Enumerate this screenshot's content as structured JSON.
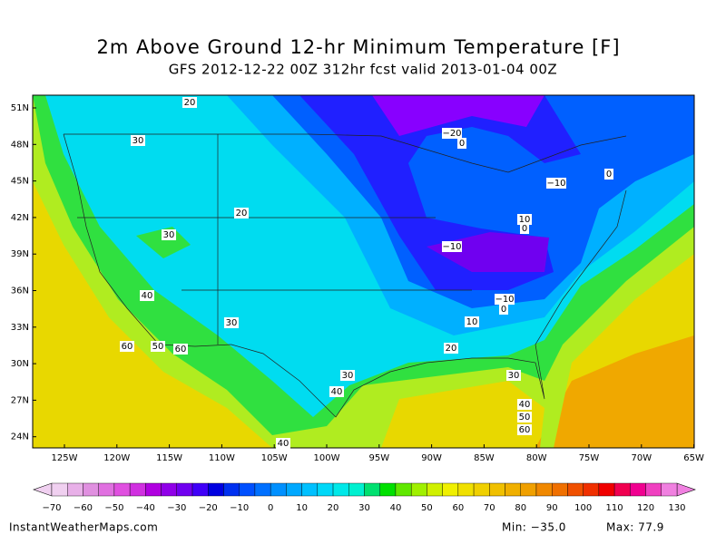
{
  "header": {
    "title": "2m Above Ground 12-hr Minimum Temperature [F]",
    "subtitle": "GFS 2012-12-22 00Z 312hr fcst valid 2013-01-04 00Z"
  },
  "map": {
    "lat_labels": [
      "51N",
      "48N",
      "45N",
      "42N",
      "39N",
      "36N",
      "33N",
      "30N",
      "27N",
      "24N"
    ],
    "lon_labels": [
      "125W",
      "120W",
      "115W",
      "110W",
      "105W",
      "100W",
      "95W",
      "90W",
      "85W",
      "80W",
      "75W",
      "70W",
      "65W"
    ],
    "contour_labels": [
      "20",
      "30",
      "−20",
      "0",
      "0",
      "−10",
      "20",
      "10",
      "0",
      "30",
      "−10",
      "40",
      "30",
      "−10",
      "0",
      "10",
      "60",
      "50",
      "60",
      "20",
      "30",
      "30",
      "40",
      "40",
      "50",
      "60",
      "40"
    ]
  },
  "colorbar": {
    "labels": [
      "−70",
      "−60",
      "−50",
      "−40",
      "−30",
      "−20",
      "−10",
      "0",
      "10",
      "20",
      "30",
      "40",
      "50",
      "60",
      "70",
      "80",
      "90",
      "100",
      "110",
      "120",
      "130"
    ],
    "colors": [
      "#f0d0f0",
      "#e8b0e8",
      "#e090e0",
      "#e070e0",
      "#e050e0",
      "#d030e0",
      "#b000e0",
      "#9000e8",
      "#7000f0",
      "#4000f8",
      "#0000e0",
      "#0030f0",
      "#0050ff",
      "#0070ff",
      "#0090ff",
      "#00a8ff",
      "#00c0ff",
      "#00d8f8",
      "#00e8e8",
      "#00f0d0",
      "#00e070",
      "#00e000",
      "#60e800",
      "#a0f000",
      "#d0f000",
      "#f0f000",
      "#f0e000",
      "#f0d000",
      "#f0c000",
      "#f0b000",
      "#f0a000",
      "#f08800",
      "#f07000",
      "#f05000",
      "#f03000",
      "#f00000",
      "#f00050",
      "#f00090",
      "#f040c0",
      "#f080e0"
    ]
  },
  "footer": {
    "site": "InstantWeatherMaps.com",
    "min": "Min: −35.0",
    "max": "Max: 77.9"
  }
}
